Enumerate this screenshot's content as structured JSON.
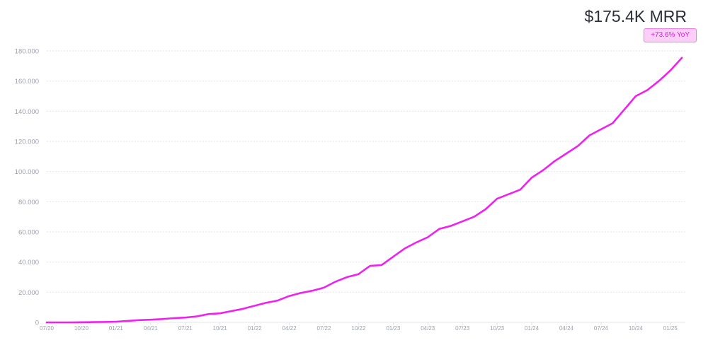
{
  "header": {
    "metric": "$175.4K MRR",
    "change_badge": "+73.6% YoY"
  },
  "colors": {
    "line": "#ee22ee",
    "grid": "#e3e5ea",
    "tick_text": "#9aa0ab",
    "badge_bg": "#fbcff8",
    "badge_text": "#d51fd2"
  },
  "chart_data": {
    "type": "line",
    "xlabel": "",
    "ylabel": "",
    "ylim": [
      0,
      180000
    ],
    "grid": true,
    "y_ticks": [
      "0",
      "20.000",
      "40.000",
      "60.000",
      "80.000",
      "100.000",
      "120.000",
      "140.000",
      "160.000",
      "180.000"
    ],
    "y_tick_values": [
      0,
      20000,
      40000,
      60000,
      80000,
      100000,
      120000,
      140000,
      160000,
      180000
    ],
    "x_ticks": [
      "07/20",
      "10/20",
      "01/21",
      "04/21",
      "07/21",
      "10/21",
      "01/22",
      "04/22",
      "07/22",
      "10/22",
      "01/23",
      "04/23",
      "07/23",
      "10/23",
      "01/24",
      "04/24",
      "07/24",
      "10/24",
      "01/25"
    ],
    "x_tick_months": [
      0,
      3,
      6,
      9,
      12,
      15,
      18,
      21,
      24,
      27,
      30,
      33,
      36,
      39,
      42,
      45,
      48,
      51,
      54
    ],
    "series": [
      {
        "x": [
          0,
          1,
          2,
          3,
          4,
          5,
          6,
          7,
          8,
          9,
          10,
          11,
          12,
          13,
          14,
          15,
          16,
          17,
          18,
          19,
          20,
          21,
          22,
          23,
          24,
          25,
          26,
          27,
          28,
          29,
          30,
          31,
          32,
          33,
          34,
          35,
          36,
          37,
          38,
          39,
          40,
          41,
          42,
          43,
          44,
          45,
          46,
          47,
          48,
          49,
          50,
          51,
          52,
          53,
          54,
          55
        ],
        "values": [
          0,
          0,
          0,
          100,
          200,
          300,
          400,
          1000,
          1500,
          1800,
          2200,
          2800,
          3200,
          4000,
          5500,
          6000,
          7500,
          9000,
          11000,
          13000,
          14500,
          17500,
          19500,
          21000,
          23000,
          27000,
          30000,
          32000,
          37500,
          38000,
          43500,
          49000,
          53000,
          56500,
          62000,
          64000,
          67000,
          70000,
          75000,
          82000,
          85000,
          88000,
          96000,
          101000,
          107000,
          112000,
          117000,
          124000,
          128000,
          132000,
          141000,
          150000,
          154000,
          160000,
          167000,
          175400
        ]
      }
    ]
  }
}
